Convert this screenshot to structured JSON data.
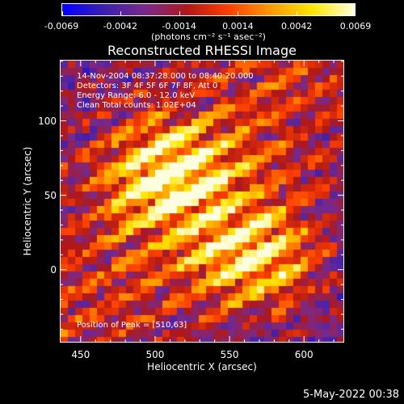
{
  "colorbar": {
    "tick_labels": [
      "-0.0069",
      "-0.0042",
      "-0.0014",
      "0.0014",
      "0.0042",
      "0.0069"
    ],
    "units": "(photons cm⁻² s⁻¹ asec⁻²)",
    "range": [
      -0.0069,
      0.0069
    ],
    "colors": [
      "#0000ff",
      "#3c1fb0",
      "#7a2a8a",
      "#b01818",
      "#ff4000",
      "#ff9a00",
      "#ffe600",
      "#ffffe0"
    ]
  },
  "chart_data": {
    "type": "heatmap",
    "title": "Reconstructed RHESSI Image",
    "xlabel": "Heliocentric X (arcsec)",
    "ylabel": "Heliocentric Y (arcsec)",
    "xlim": [
      436,
      627
    ],
    "ylim": [
      -49,
      141
    ],
    "x_ticks": [
      450,
      500,
      550,
      600
    ],
    "y_ticks": [
      0,
      50,
      100
    ],
    "info_lines": [
      "14-Nov-2004 08:37:28.000 to 08:40:20.000",
      "Detectors: 3F 4F 5F 6F 7F 8F, Att 0",
      "Energy Range: 6.0 - 12.0 keV",
      "Clean     Total counts: 1.02E+04"
    ],
    "peak_label": "Position of Peak = [510,63]",
    "sources": [
      {
        "x": 510,
        "y": 63,
        "peak": 1.0
      },
      {
        "x": 565,
        "y": 10,
        "peak": 0.9
      }
    ]
  },
  "date_stamp": "5-May-2022 00:38"
}
